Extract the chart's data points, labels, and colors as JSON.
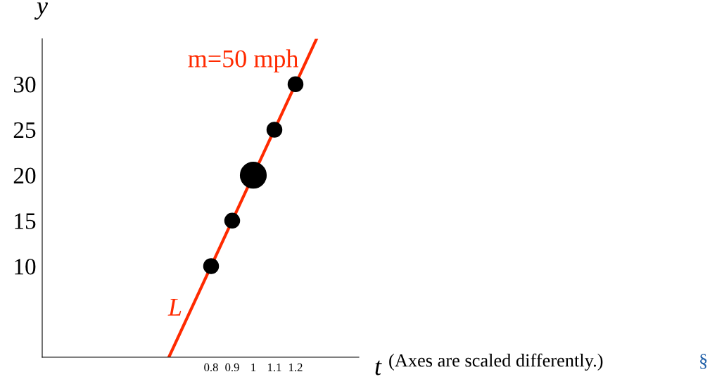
{
  "chart_data": {
    "type": "bubble",
    "xlabel": "t",
    "ylabel": "y",
    "xlim": [
      0,
      1.5
    ],
    "ylim": [
      0,
      35
    ],
    "xticks": [
      0.8,
      0.9,
      1,
      1.1,
      1.2
    ],
    "yticks": [
      10,
      15,
      20,
      25,
      30
    ],
    "series": [
      {
        "type": "line",
        "color": "#ff2a00",
        "x": [
          0.6,
          1.3
        ],
        "values": [
          0,
          35
        ]
      },
      {
        "color": "#000000",
        "x": [
          0.8,
          0.9,
          1,
          1.1,
          1.2
        ],
        "values": [
          10,
          15,
          20,
          25,
          30
        ],
        "sizes": [
          0.33,
          0.33,
          1,
          0.33,
          0.33
        ]
      }
    ],
    "annotations": [
      "m=50 mph",
      "L",
      "(Axes are scaled differently.)",
      "§"
    ],
    "grid": false,
    "legend": false
  }
}
